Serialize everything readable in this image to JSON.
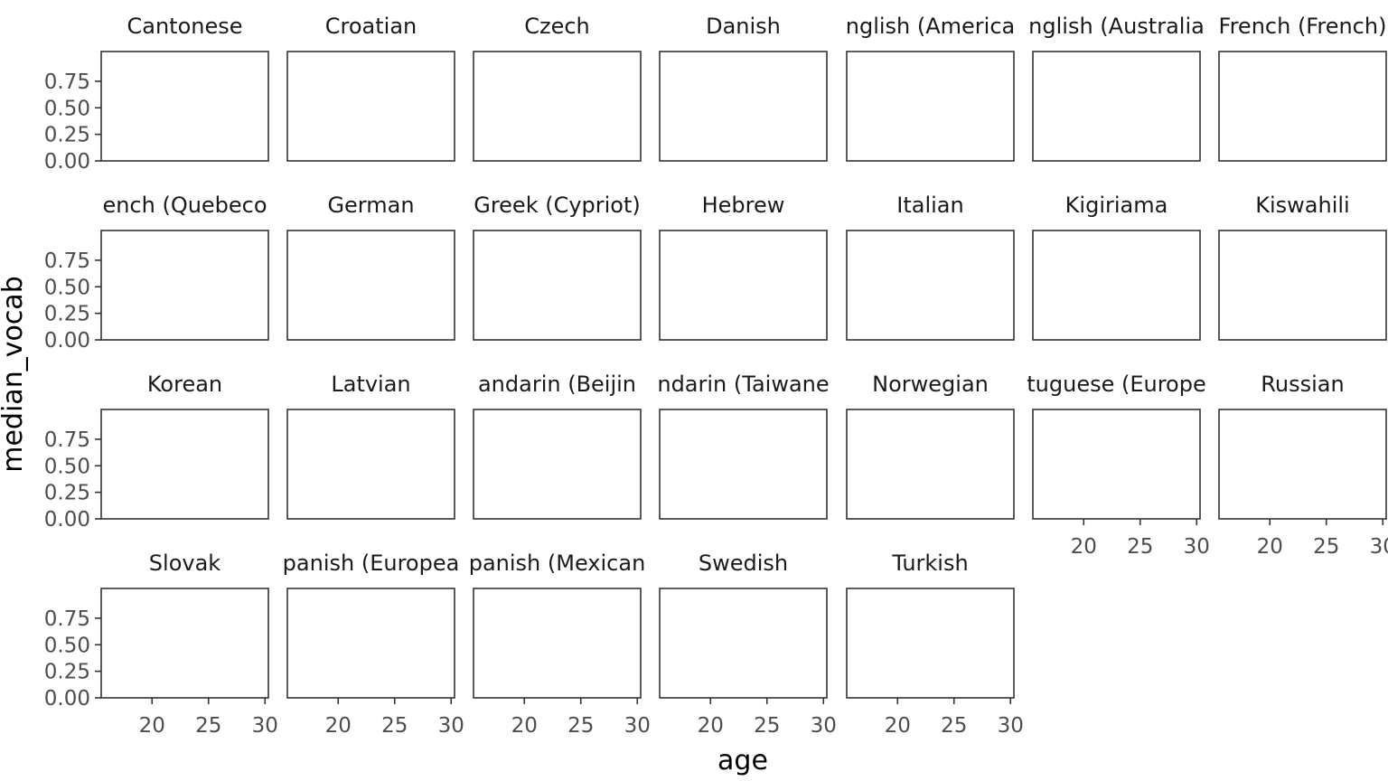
{
  "chart_data": {
    "type": "scatter",
    "facet_titles": [
      "Cantonese",
      "Croatian",
      "Czech",
      "Danish",
      "English (American)",
      "English (Australian)",
      "French (French)",
      "French (Quebecois)",
      "German",
      "Greek (Cypriot)",
      "Hebrew",
      "Italian",
      "Kigiriama",
      "Kiswahili",
      "Korean",
      "Latvian",
      "Mandarin (Beijing)",
      "Mandarin (Taiwanese)",
      "Norwegian",
      "Portuguese (European)",
      "Russian",
      "Slovak",
      "Spanish (European)",
      "Spanish (Mexican)",
      "Swedish",
      "Turkish"
    ],
    "display_titles": [
      "Cantonese",
      "Croatian",
      "Czech",
      "Danish",
      "nglish (America",
      "nglish (Australia",
      "French (French)",
      "ench (Quebeco",
      "German",
      "Greek (Cypriot)",
      "Hebrew",
      "Italian",
      "Kigiriama",
      "Kiswahili",
      "Korean",
      "Latvian",
      "andarin (Beijin",
      "ndarin (Taiwane",
      "Norwegian",
      "tuguese (Europe",
      "Russian",
      "Slovak",
      "panish (Europea",
      "panish (Mexican",
      "Swedish",
      "Turkish"
    ],
    "series": [],
    "xlabel": "age",
    "ylabel": "median_vocab",
    "xlim": [
      15.5,
      30.3
    ],
    "ylim": [
      0,
      1.03
    ],
    "x_ticks": [
      20,
      25,
      30
    ],
    "y_ticks": [
      "0.00",
      "0.25",
      "0.50",
      "0.75"
    ],
    "y_tick_values": [
      0,
      0.25,
      0.5,
      0.75
    ],
    "ncol": 7,
    "grid": false
  }
}
